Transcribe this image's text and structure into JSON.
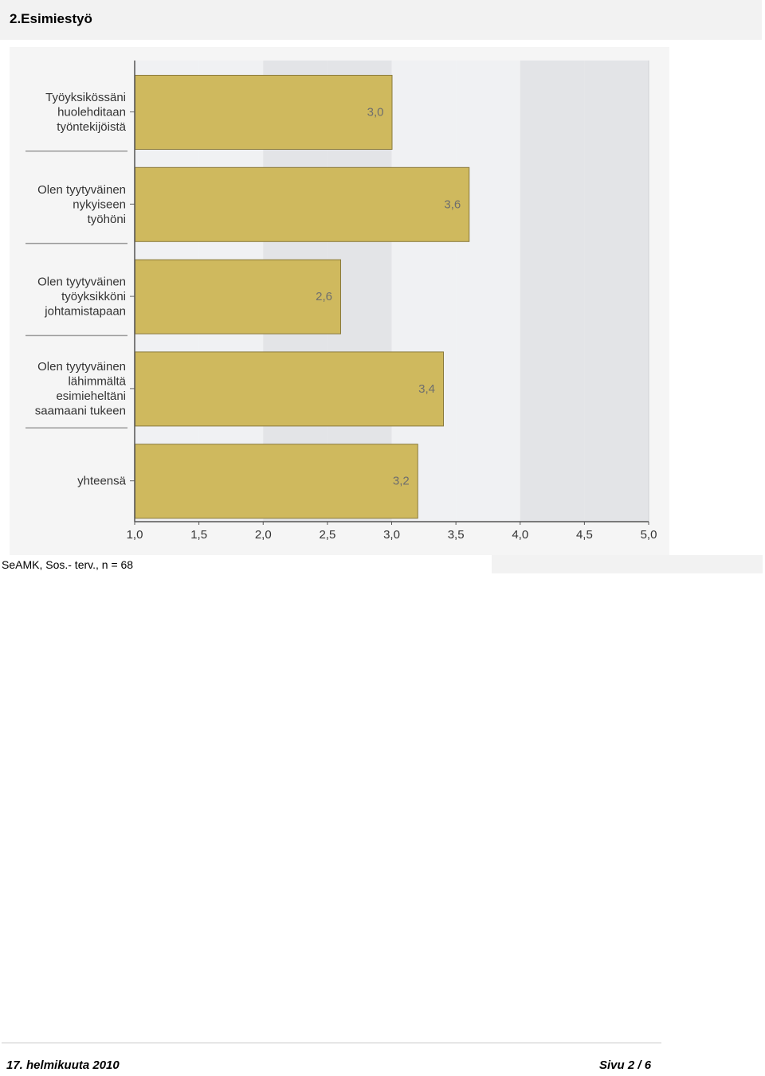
{
  "page": {
    "heading": "2.Esimiestyö",
    "caption": "SeAMK, Sos.- terv., n = 68",
    "footer_date": "17. helmikuuta 2010",
    "footer_page": "Sivu 2 / 6"
  },
  "colors": {
    "bar_fill": "#cfb95e",
    "bar_stroke": "#8a7a3c",
    "band_light": "#f0f1f3",
    "band_dark": "#e3e4e7",
    "value_label": "#6e6e6e"
  },
  "chart_data": {
    "type": "bar",
    "orientation": "horizontal",
    "title": "",
    "xlabel": "",
    "ylabel": "",
    "categories": [
      [
        "Työyksikössäni",
        "huolehditaan",
        "työntekijöistä"
      ],
      [
        "Olen tyytyväinen",
        "nykyiseen",
        "työhöni"
      ],
      [
        "Olen tyytyväinen",
        "työyksikköni",
        "johtamistapaan"
      ],
      [
        "Olen tyytyväinen",
        "lähimmältä",
        "esimieheltäni",
        "saamaani tukeen"
      ],
      [
        "yhteensä"
      ]
    ],
    "values": [
      3.0,
      3.6,
      2.6,
      3.4,
      3.2
    ],
    "value_labels": [
      "3,0",
      "3,6",
      "2,6",
      "3,4",
      "3,2"
    ],
    "xlim": [
      1.0,
      5.0
    ],
    "xticks": [
      1.0,
      1.5,
      2.0,
      2.5,
      3.0,
      3.5,
      4.0,
      4.5,
      5.0
    ],
    "xtick_labels": [
      "1,0",
      "1,5",
      "2,0",
      "2,5",
      "3,0",
      "3,5",
      "4,0",
      "4,5",
      "5,0"
    ],
    "grid": "alternating vertical bands",
    "legend": "none"
  }
}
